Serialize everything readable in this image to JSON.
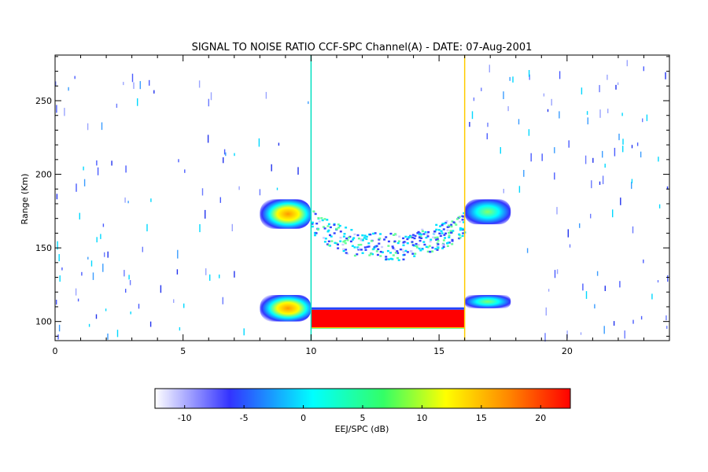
{
  "chart_data": {
    "type": "heatmap",
    "title": "SIGNAL TO NOISE RATIO CCF-SPC Channel(A) - DATE: 07-Aug-2001",
    "xlabel": "",
    "ylabel": "Range (Km)",
    "xlim": [
      0,
      24
    ],
    "ylim": [
      87,
      281
    ],
    "x_ticks": [
      0,
      5,
      10,
      15,
      20
    ],
    "y_ticks": [
      100,
      150,
      200,
      250
    ],
    "colorbar": {
      "label": "EEJ/SPC (dB)",
      "range": [
        -12.5,
        22.5
      ],
      "ticks": [
        -10,
        -5,
        0,
        5,
        10,
        15,
        20
      ],
      "colors": [
        "#ffffff",
        "#3333ff",
        "#00ffff",
        "#ffff00",
        "#ff0000"
      ]
    },
    "regions": [
      {
        "name": "150 km echo (left)",
        "x": [
          8.0,
          10.0
        ],
        "y": [
          163,
          183
        ],
        "snr_db": 10
      },
      {
        "name": "150 km echo (right)",
        "x": [
          16.0,
          17.8
        ],
        "y": [
          166,
          183
        ],
        "snr_db": 3
      },
      {
        "name": "150 km echo arc",
        "x": [
          10.0,
          16.0
        ],
        "y": [
          137,
          165
        ],
        "snr_db": 0
      },
      {
        "name": "E-region echo (left)",
        "x": [
          8.0,
          10.0
        ],
        "y": [
          100,
          118
        ],
        "snr_db": 10
      },
      {
        "name": "E-region echo (right)",
        "x": [
          16.0,
          17.8
        ],
        "y": [
          109,
          118
        ],
        "snr_db": 3
      },
      {
        "name": "EEJ echo",
        "x": [
          10.0,
          16.0
        ],
        "y": [
          95,
          108
        ],
        "snr_db": 22
      }
    ],
    "markers": [
      {
        "x": 10.0,
        "color": "#00e0c0"
      },
      {
        "x": 16.0,
        "color": "#ffcc00"
      }
    ]
  }
}
